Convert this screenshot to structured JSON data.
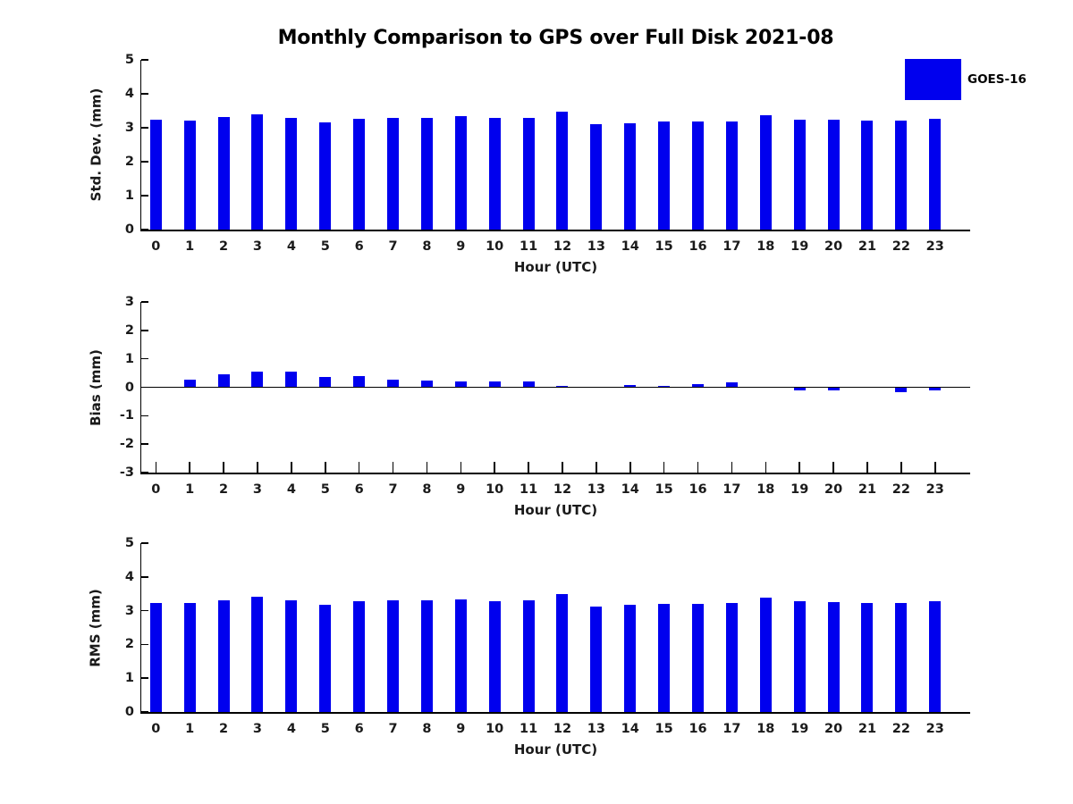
{
  "title": "Monthly Comparison to GPS over Full Disk 2021-08",
  "legend": {
    "label": "GOES-16",
    "swatch_color": "#0000ee"
  },
  "colors": {
    "bar": "#0000ee",
    "axis": "#000000",
    "text": "#1a1a1a"
  },
  "chart_data": [
    {
      "id": "std_dev",
      "type": "bar",
      "title": "",
      "xlabel": "Hour (UTC)",
      "ylabel": "Std. Dev. (mm)",
      "categories": [
        "0",
        "1",
        "2",
        "3",
        "4",
        "5",
        "6",
        "7",
        "8",
        "9",
        "10",
        "11",
        "12",
        "13",
        "14",
        "15",
        "16",
        "17",
        "18",
        "19",
        "20",
        "21",
        "22",
        "23"
      ],
      "values": [
        3.25,
        3.22,
        3.31,
        3.39,
        3.28,
        3.16,
        3.26,
        3.3,
        3.3,
        3.33,
        3.28,
        3.3,
        3.47,
        3.1,
        3.14,
        3.18,
        3.19,
        3.18,
        3.38,
        3.24,
        3.25,
        3.21,
        3.21,
        3.26
      ],
      "ylim": [
        0,
        5
      ],
      "yticks": [
        0,
        1,
        2,
        3,
        4,
        5
      ],
      "grid": false,
      "legend_entries": [
        "GOES-16"
      ],
      "legend_position": "upper-right-outside"
    },
    {
      "id": "bias",
      "type": "bar",
      "title": "",
      "xlabel": "Hour (UTC)",
      "ylabel": "Bias (mm)",
      "categories": [
        "0",
        "1",
        "2",
        "3",
        "4",
        "5",
        "6",
        "7",
        "8",
        "9",
        "10",
        "11",
        "12",
        "13",
        "14",
        "15",
        "16",
        "17",
        "18",
        "19",
        "20",
        "21",
        "22",
        "23"
      ],
      "values": [
        0.0,
        0.28,
        0.45,
        0.55,
        0.55,
        0.37,
        0.4,
        0.28,
        0.22,
        0.21,
        0.21,
        0.2,
        0.05,
        0.0,
        0.09,
        0.06,
        0.1,
        0.17,
        0.0,
        -0.1,
        -0.11,
        0.0,
        -0.16,
        -0.1
      ],
      "ylim": [
        -3,
        3
      ],
      "yticks": [
        -3,
        -2,
        -1,
        0,
        1,
        2,
        3
      ],
      "grid": false,
      "zero_line": true
    },
    {
      "id": "rms",
      "type": "bar",
      "title": "",
      "xlabel": "Hour (UTC)",
      "ylabel": "RMS (mm)",
      "categories": [
        "0",
        "1",
        "2",
        "3",
        "4",
        "5",
        "6",
        "7",
        "8",
        "9",
        "10",
        "11",
        "12",
        "13",
        "14",
        "15",
        "16",
        "17",
        "18",
        "19",
        "20",
        "21",
        "22",
        "23"
      ],
      "values": [
        3.24,
        3.24,
        3.32,
        3.41,
        3.31,
        3.17,
        3.29,
        3.32,
        3.31,
        3.34,
        3.29,
        3.31,
        3.48,
        3.11,
        3.17,
        3.2,
        3.21,
        3.22,
        3.39,
        3.27,
        3.26,
        3.23,
        3.24,
        3.28
      ],
      "ylim": [
        0,
        5
      ],
      "yticks": [
        0,
        1,
        2,
        3,
        4,
        5
      ],
      "grid": false
    }
  ]
}
